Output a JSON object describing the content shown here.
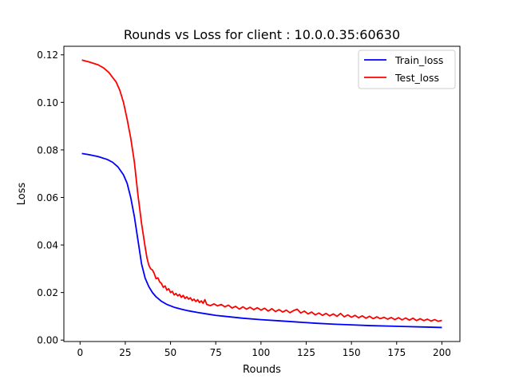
{
  "chart_data": {
    "type": "line",
    "title": "Rounds vs Loss for client : 10.0.0.35:60630",
    "xlabel": "Rounds",
    "ylabel": "Loss",
    "xlim": [
      -8.95,
      209.95
    ],
    "ylim": [
      -0.0006,
      0.1236
    ],
    "xticks": [
      0,
      25,
      50,
      75,
      100,
      125,
      150,
      175,
      200
    ],
    "yticks": [
      0.0,
      0.02,
      0.04,
      0.06,
      0.08,
      0.1,
      0.12
    ],
    "ytick_labels": [
      "0.00",
      "0.02",
      "0.04",
      "0.06",
      "0.08",
      "0.10",
      "0.12"
    ],
    "grid": false,
    "legend_position": "top-right",
    "series": [
      {
        "name": "Train_loss",
        "color": "#0000ff",
        "points": [
          [
            1,
            0.0785
          ],
          [
            5,
            0.078
          ],
          [
            10,
            0.0772
          ],
          [
            15,
            0.076
          ],
          [
            18,
            0.0748
          ],
          [
            21,
            0.0728
          ],
          [
            24,
            0.0695
          ],
          [
            26,
            0.066
          ],
          [
            28,
            0.06
          ],
          [
            30,
            0.052
          ],
          [
            32,
            0.042
          ],
          [
            34,
            0.032
          ],
          [
            36,
            0.026
          ],
          [
            38,
            0.0225
          ],
          [
            40,
            0.02
          ],
          [
            42,
            0.0182
          ],
          [
            45,
            0.0163
          ],
          [
            48,
            0.015
          ],
          [
            52,
            0.0138
          ],
          [
            56,
            0.013
          ],
          [
            60,
            0.0123
          ],
          [
            65,
            0.0116
          ],
          [
            70,
            0.011
          ],
          [
            75,
            0.0104
          ],
          [
            80,
            0.01
          ],
          [
            90,
            0.0092
          ],
          [
            100,
            0.0086
          ],
          [
            110,
            0.0081
          ],
          [
            120,
            0.0076
          ],
          [
            130,
            0.0071
          ],
          [
            140,
            0.0067
          ],
          [
            150,
            0.0064
          ],
          [
            160,
            0.0061
          ],
          [
            170,
            0.0059
          ],
          [
            180,
            0.0057
          ],
          [
            190,
            0.0055
          ],
          [
            200,
            0.0053
          ]
        ]
      },
      {
        "name": "Test_loss",
        "color": "#ff0000",
        "points": [
          [
            1,
            0.1178
          ],
          [
            5,
            0.117
          ],
          [
            10,
            0.1158
          ],
          [
            13,
            0.1145
          ],
          [
            16,
            0.1125
          ],
          [
            18,
            0.1105
          ],
          [
            20,
            0.1085
          ],
          [
            22,
            0.105
          ],
          [
            24,
            0.1
          ],
          [
            26,
            0.093
          ],
          [
            28,
            0.085
          ],
          [
            29,
            0.08
          ],
          [
            30,
            0.075
          ],
          [
            31,
            0.068
          ],
          [
            32,
            0.061
          ],
          [
            33,
            0.055
          ],
          [
            34,
            0.049
          ],
          [
            35,
            0.044
          ],
          [
            36,
            0.039
          ],
          [
            37,
            0.0345
          ],
          [
            38,
            0.0315
          ],
          [
            39,
            0.03
          ],
          [
            40,
            0.0295
          ],
          [
            41,
            0.028
          ],
          [
            42,
            0.0258
          ],
          [
            43,
            0.0262
          ],
          [
            44,
            0.0245
          ],
          [
            45,
            0.0238
          ],
          [
            46,
            0.0222
          ],
          [
            47,
            0.0228
          ],
          [
            48,
            0.021
          ],
          [
            49,
            0.0216
          ],
          [
            50,
            0.02
          ],
          [
            51,
            0.0205
          ],
          [
            52,
            0.019
          ],
          [
            53,
            0.0196
          ],
          [
            54,
            0.0186
          ],
          [
            55,
            0.0192
          ],
          [
            56,
            0.018
          ],
          [
            57,
            0.0188
          ],
          [
            58,
            0.0175
          ],
          [
            59,
            0.0182
          ],
          [
            60,
            0.0172
          ],
          [
            61,
            0.0178
          ],
          [
            62,
            0.0166
          ],
          [
            63,
            0.0172
          ],
          [
            64,
            0.0162
          ],
          [
            65,
            0.017
          ],
          [
            66,
            0.0158
          ],
          [
            67,
            0.0165
          ],
          [
            68,
            0.0155
          ],
          [
            69,
            0.017
          ],
          [
            70,
            0.015
          ],
          [
            72,
            0.0145
          ],
          [
            74,
            0.0152
          ],
          [
            76,
            0.0144
          ],
          [
            78,
            0.015
          ],
          [
            80,
            0.014
          ],
          [
            82,
            0.0147
          ],
          [
            84,
            0.0135
          ],
          [
            86,
            0.0142
          ],
          [
            88,
            0.013
          ],
          [
            90,
            0.014
          ],
          [
            92,
            0.013
          ],
          [
            94,
            0.0138
          ],
          [
            96,
            0.0128
          ],
          [
            98,
            0.0136
          ],
          [
            100,
            0.0126
          ],
          [
            102,
            0.0134
          ],
          [
            104,
            0.0122
          ],
          [
            106,
            0.0132
          ],
          [
            108,
            0.012
          ],
          [
            110,
            0.0128
          ],
          [
            112,
            0.0118
          ],
          [
            114,
            0.0126
          ],
          [
            116,
            0.0115
          ],
          [
            118,
            0.0124
          ],
          [
            120,
            0.013
          ],
          [
            122,
            0.0114
          ],
          [
            124,
            0.0122
          ],
          [
            126,
            0.011
          ],
          [
            128,
            0.0118
          ],
          [
            130,
            0.0106
          ],
          [
            132,
            0.0114
          ],
          [
            134,
            0.0104
          ],
          [
            136,
            0.0112
          ],
          [
            138,
            0.0102
          ],
          [
            140,
            0.011
          ],
          [
            142,
            0.01
          ],
          [
            144,
            0.0112
          ],
          [
            146,
            0.0098
          ],
          [
            148,
            0.0106
          ],
          [
            150,
            0.0096
          ],
          [
            152,
            0.0104
          ],
          [
            154,
            0.0094
          ],
          [
            156,
            0.0102
          ],
          [
            158,
            0.0092
          ],
          [
            160,
            0.01
          ],
          [
            162,
            0.009
          ],
          [
            164,
            0.0098
          ],
          [
            166,
            0.009
          ],
          [
            168,
            0.0096
          ],
          [
            170,
            0.0088
          ],
          [
            172,
            0.0095
          ],
          [
            174,
            0.0086
          ],
          [
            176,
            0.0094
          ],
          [
            178,
            0.0085
          ],
          [
            180,
            0.0093
          ],
          [
            182,
            0.0084
          ],
          [
            184,
            0.0092
          ],
          [
            186,
            0.0082
          ],
          [
            188,
            0.009
          ],
          [
            190,
            0.0082
          ],
          [
            192,
            0.0088
          ],
          [
            194,
            0.008
          ],
          [
            196,
            0.0086
          ],
          [
            198,
            0.0079
          ],
          [
            200,
            0.0083
          ]
        ]
      }
    ]
  }
}
